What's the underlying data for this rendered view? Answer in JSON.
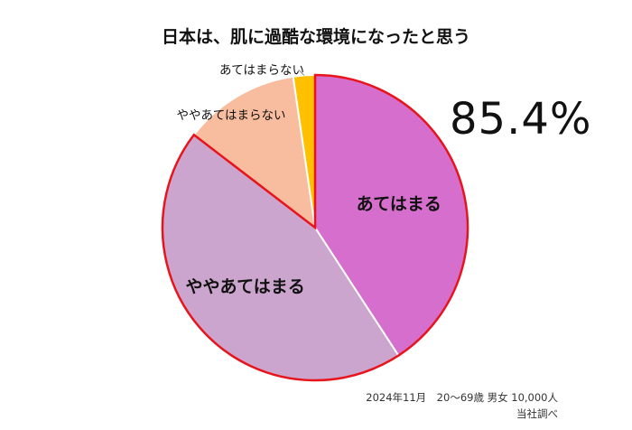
{
  "chart_data": {
    "type": "pie",
    "title": "日本は、肌に過酷な環境になったと思う",
    "categories": [
      "あてはまる",
      "ややあてはまる",
      "ややあてはまらない",
      "あてはまらない"
    ],
    "values": [
      40.8,
      44.6,
      12.3,
      2.3
    ],
    "colors": [
      "#D56ECC",
      "#CCA5CE",
      "#F8BC9E",
      "#FFC000"
    ],
    "highlighted": [
      "あてはまる",
      "ややあてはまる"
    ],
    "highlight_color": "#E8141C",
    "combined_value": "85.4%"
  },
  "notes": {
    "line1": "2024年11月　20～69歳 男女 10,000人",
    "line2": "当社調べ"
  }
}
